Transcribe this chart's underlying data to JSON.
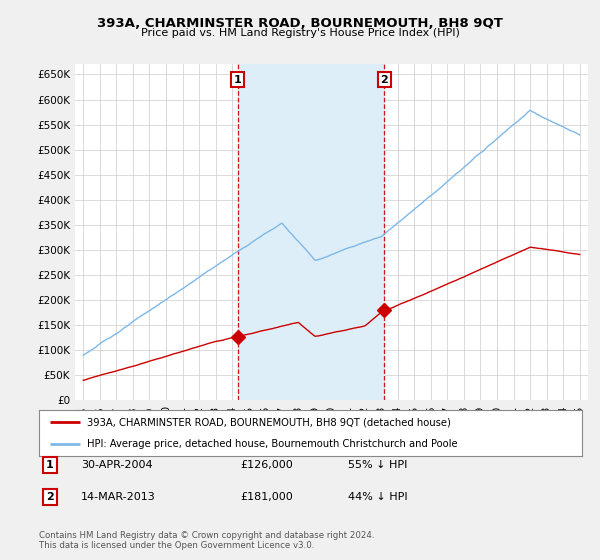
{
  "title": "393A, CHARMINSTER ROAD, BOURNEMOUTH, BH8 9QT",
  "subtitle": "Price paid vs. HM Land Registry's House Price Index (HPI)",
  "legend_line1": "393A, CHARMINSTER ROAD, BOURNEMOUTH, BH8 9QT (detached house)",
  "legend_line2": "HPI: Average price, detached house, Bournemouth Christchurch and Poole",
  "footer1": "Contains HM Land Registry data © Crown copyright and database right 2024.",
  "footer2": "This data is licensed under the Open Government Licence v3.0.",
  "annotation1_label": "1",
  "annotation1_date": "30-APR-2004",
  "annotation1_price": "£126,000",
  "annotation1_hpi": "55% ↓ HPI",
  "annotation2_label": "2",
  "annotation2_date": "14-MAR-2013",
  "annotation2_price": "£181,000",
  "annotation2_hpi": "44% ↓ HPI",
  "sale1_x": 2004.33,
  "sale1_y": 126000,
  "sale2_x": 2013.2,
  "sale2_y": 181000,
  "hpi_color": "#7eb8e8",
  "sale_color": "#cc0000",
  "shade_color": "#ddeef8",
  "background_color": "#f0f0f0",
  "plot_bg_color": "#ffffff",
  "grid_color": "#cccccc",
  "ylim": [
    0,
    670000
  ],
  "xlim": [
    1994.5,
    2025.5
  ],
  "yticks": [
    0,
    50000,
    100000,
    150000,
    200000,
    250000,
    300000,
    350000,
    400000,
    450000,
    500000,
    550000,
    600000,
    650000
  ],
  "ytick_labels": [
    "£0",
    "£50K",
    "£100K",
    "£150K",
    "£200K",
    "£250K",
    "£300K",
    "£350K",
    "£400K",
    "£450K",
    "£500K",
    "£550K",
    "£600K",
    "£650K"
  ],
  "xticks": [
    1995,
    1996,
    1997,
    1998,
    1999,
    2000,
    2001,
    2002,
    2003,
    2004,
    2005,
    2006,
    2007,
    2008,
    2009,
    2010,
    2011,
    2012,
    2013,
    2014,
    2015,
    2016,
    2017,
    2018,
    2019,
    2020,
    2021,
    2022,
    2023,
    2024,
    2025
  ]
}
